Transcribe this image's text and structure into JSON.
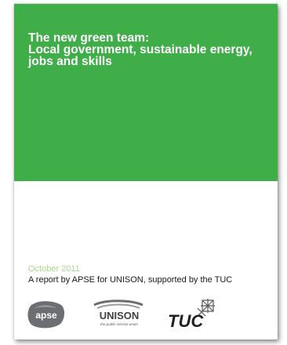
{
  "cover": {
    "title_lines": [
      "The new green team:",
      "Local government, sustainable energy,",
      "jobs and skills"
    ],
    "date": "October 2011",
    "byline": "A report by APSE for UNISON, supported by the TUC"
  },
  "logos": {
    "apse": "apse",
    "unison": "UNISON",
    "unison_tagline": "the public service union",
    "tuc": "TUC"
  },
  "colors": {
    "green": "#3fae49",
    "date_green": "#a7d98c"
  }
}
